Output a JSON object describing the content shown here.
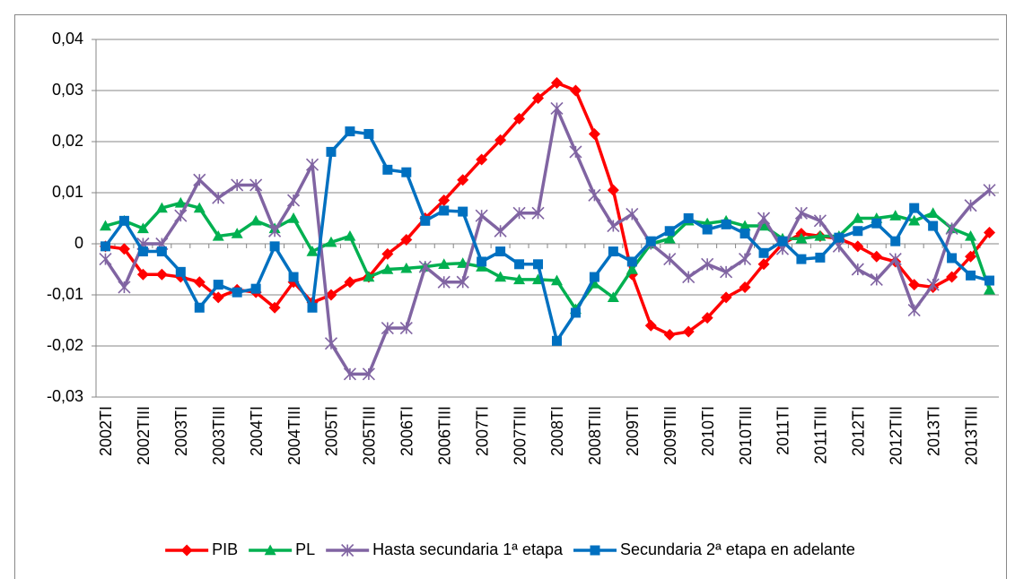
{
  "chart_data": {
    "type": "line",
    "categories": [
      "2002TI",
      null,
      "2002TIII",
      null,
      "2003TI",
      null,
      "2003TIII",
      null,
      "2004TI",
      null,
      "2004TIII",
      null,
      "2005TI",
      null,
      "2005TIII",
      null,
      "2006TI",
      null,
      "2006TIII",
      null,
      "2007TI",
      null,
      "2007TIII",
      null,
      "2008TI",
      null,
      "2008TIII",
      null,
      "2009TI",
      null,
      "2009TIII",
      null,
      "2010TI",
      null,
      "2010TIII",
      null,
      "2011TI",
      null,
      "2011TIII",
      null,
      "2012TI",
      null,
      "2012TIII",
      null,
      "2013TI",
      null,
      "2013TIII",
      null
    ],
    "series": [
      {
        "name": "PIB",
        "color": "#ff0000",
        "marker": "diamond",
        "values": [
          -0.0005,
          -0.001,
          -0.006,
          -0.006,
          -0.0065,
          -0.0075,
          -0.0105,
          -0.009,
          -0.0095,
          -0.0125,
          -0.0075,
          -0.0115,
          -0.01,
          -0.0075,
          -0.0065,
          -0.002,
          0.0008,
          0.005,
          0.0085,
          0.0125,
          0.0165,
          0.0203,
          0.0245,
          0.0285,
          0.0315,
          0.03,
          0.0215,
          0.0105,
          -0.006,
          -0.016,
          -0.0178,
          -0.0172,
          -0.0145,
          -0.0105,
          -0.0085,
          -0.004,
          0,
          0.002,
          0.0015,
          0.001,
          -0.0005,
          -0.0025,
          -0.0035,
          -0.008,
          -0.0085,
          -0.0065,
          -0.0025,
          0.0022
        ]
      },
      {
        "name": "PL",
        "color": "#00b050",
        "marker": "triangle",
        "values": [
          0.0035,
          0.0045,
          0.003,
          0.007,
          0.008,
          0.007,
          0.0015,
          0.002,
          0.0045,
          0.003,
          0.005,
          -0.0015,
          0.0003,
          0.0015,
          -0.0065,
          -0.005,
          -0.0048,
          -0.0045,
          -0.004,
          -0.0038,
          -0.0045,
          -0.0065,
          -0.007,
          -0.007,
          -0.0072,
          -0.0128,
          -0.0078,
          -0.0105,
          -0.005,
          0,
          0.001,
          0.0045,
          0.004,
          0.0045,
          0.0035,
          0.0035,
          0.001,
          0.001,
          0.0015,
          0.0015,
          0.005,
          0.005,
          0.0055,
          0.0045,
          0.006,
          0.003,
          0.0015,
          -0.009
        ]
      },
      {
        "name": "Hasta secundaria 1ª etapa",
        "color": "#8064a2",
        "marker": "star",
        "values": [
          -0.003,
          -0.0085,
          0,
          0,
          0.0055,
          0.0125,
          0.009,
          0.0115,
          0.0115,
          0.0025,
          0.0085,
          0.0155,
          -0.0195,
          -0.0255,
          -0.0255,
          -0.0165,
          -0.0165,
          -0.0045,
          -0.0075,
          -0.0075,
          0.0055,
          0.0025,
          0.006,
          0.006,
          0.0265,
          0.018,
          0.0095,
          0.0035,
          0.0058,
          0,
          -0.003,
          -0.0065,
          -0.004,
          -0.0055,
          -0.003,
          0.005,
          -0.001,
          0.006,
          0.0045,
          -0.0005,
          -0.005,
          -0.007,
          -0.003,
          -0.013,
          -0.008,
          0.003,
          0.0075,
          0.0105
        ]
      },
      {
        "name": "Secundaria 2ª etapa en adelante",
        "color": "#0070c0",
        "marker": "square",
        "values": [
          -0.0005,
          0.0045,
          -0.0015,
          -0.0015,
          -0.0055,
          -0.0125,
          -0.008,
          -0.0095,
          -0.0088,
          -0.0005,
          -0.0065,
          -0.0125,
          0.018,
          0.022,
          0.0215,
          0.0145,
          0.014,
          0.0045,
          0.0065,
          0.0063,
          -0.0035,
          -0.0015,
          -0.004,
          -0.004,
          -0.019,
          -0.0135,
          -0.0065,
          -0.0015,
          -0.0035,
          0.0005,
          0.0025,
          0.005,
          0.0028,
          0.0038,
          0.002,
          -0.0018,
          0.0005,
          -0.003,
          -0.0027,
          0.0012,
          0.0025,
          0.004,
          0.0005,
          0.007,
          0.0035,
          -0.0028,
          -0.0062,
          -0.0072
        ]
      }
    ],
    "ylim": [
      -0.03,
      0.04
    ],
    "yticks": [
      {
        "value": -0.03,
        "label": "-0,03"
      },
      {
        "value": -0.02,
        "label": "-0,02"
      },
      {
        "value": -0.01,
        "label": "-0,01"
      },
      0,
      {
        "value": 0.01,
        "label": "0,01"
      },
      {
        "value": 0.02,
        "label": "0,02"
      },
      {
        "value": 0.03,
        "label": "0,03"
      },
      {
        "value": 0.04,
        "label": "0,04"
      }
    ],
    "grid": true,
    "legend": "bottom"
  }
}
